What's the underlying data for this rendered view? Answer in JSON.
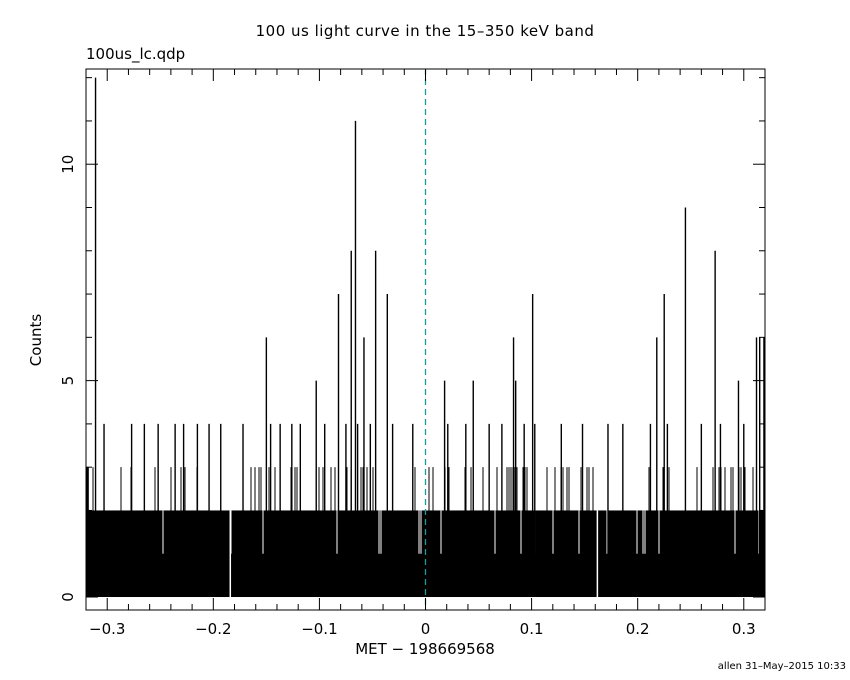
{
  "title": "100 us light curve in the 15–350 keV band",
  "file_label": "100us_lc.qdp",
  "footer": "allen 31–May–2015 10:33",
  "chart_data": {
    "type": "bar",
    "title": "100 us light curve in the 15–350 keV band",
    "xlabel": "MET − 198669568",
    "ylabel": "Counts",
    "xlim": [
      -0.32,
      0.32
    ],
    "ylim": [
      -0.3,
      12.2
    ],
    "x_ticks": [
      -0.3,
      -0.2,
      -0.1,
      0,
      0.1,
      0.2,
      0.3
    ],
    "x_tick_labels": [
      "−0.3",
      "−0.2",
      "−0.1",
      "0",
      "0.1",
      "0.2",
      "0.3"
    ],
    "y_ticks": [
      0,
      5,
      10
    ],
    "y_tick_labels": [
      "0",
      "5",
      "10"
    ],
    "bin_width": 0.0001,
    "baseline_level": 2,
    "gaps_at_x": [
      -0.184,
      0.162
    ],
    "vertical_marker": {
      "x": 0,
      "style": "dashed",
      "color": "#1a9a9a"
    },
    "spikes": {
      "x": [
        -0.318,
        -0.311,
        -0.303,
        -0.277,
        -0.265,
        -0.252,
        -0.236,
        -0.228,
        -0.215,
        -0.204,
        -0.193,
        -0.172,
        -0.15,
        -0.146,
        -0.137,
        -0.126,
        -0.118,
        -0.103,
        -0.095,
        -0.082,
        -0.075,
        -0.07,
        -0.066,
        -0.064,
        -0.058,
        -0.052,
        -0.047,
        -0.036,
        -0.031,
        -0.012,
        0.018,
        0.021,
        0.038,
        0.045,
        0.06,
        0.072,
        0.083,
        0.085,
        0.093,
        0.101,
        0.103,
        0.128,
        0.148,
        0.172,
        0.186,
        0.212,
        0.218,
        0.225,
        0.228,
        0.245,
        0.26,
        0.273,
        0.278,
        0.295,
        0.3,
        0.312,
        0.315,
        0.319
      ],
      "y": [
        3,
        12,
        4,
        4,
        4,
        4,
        4,
        4,
        4,
        4,
        4,
        4,
        6,
        4,
        4,
        4,
        4,
        5,
        4,
        7,
        4,
        8,
        11,
        4,
        6,
        4,
        8,
        7,
        4,
        4,
        5,
        4,
        4,
        5,
        4,
        4,
        6,
        5,
        4,
        7,
        4,
        4,
        4,
        4,
        4,
        4,
        6,
        7,
        4,
        9,
        4,
        8,
        4,
        5,
        4,
        6,
        6,
        6
      ]
    }
  }
}
